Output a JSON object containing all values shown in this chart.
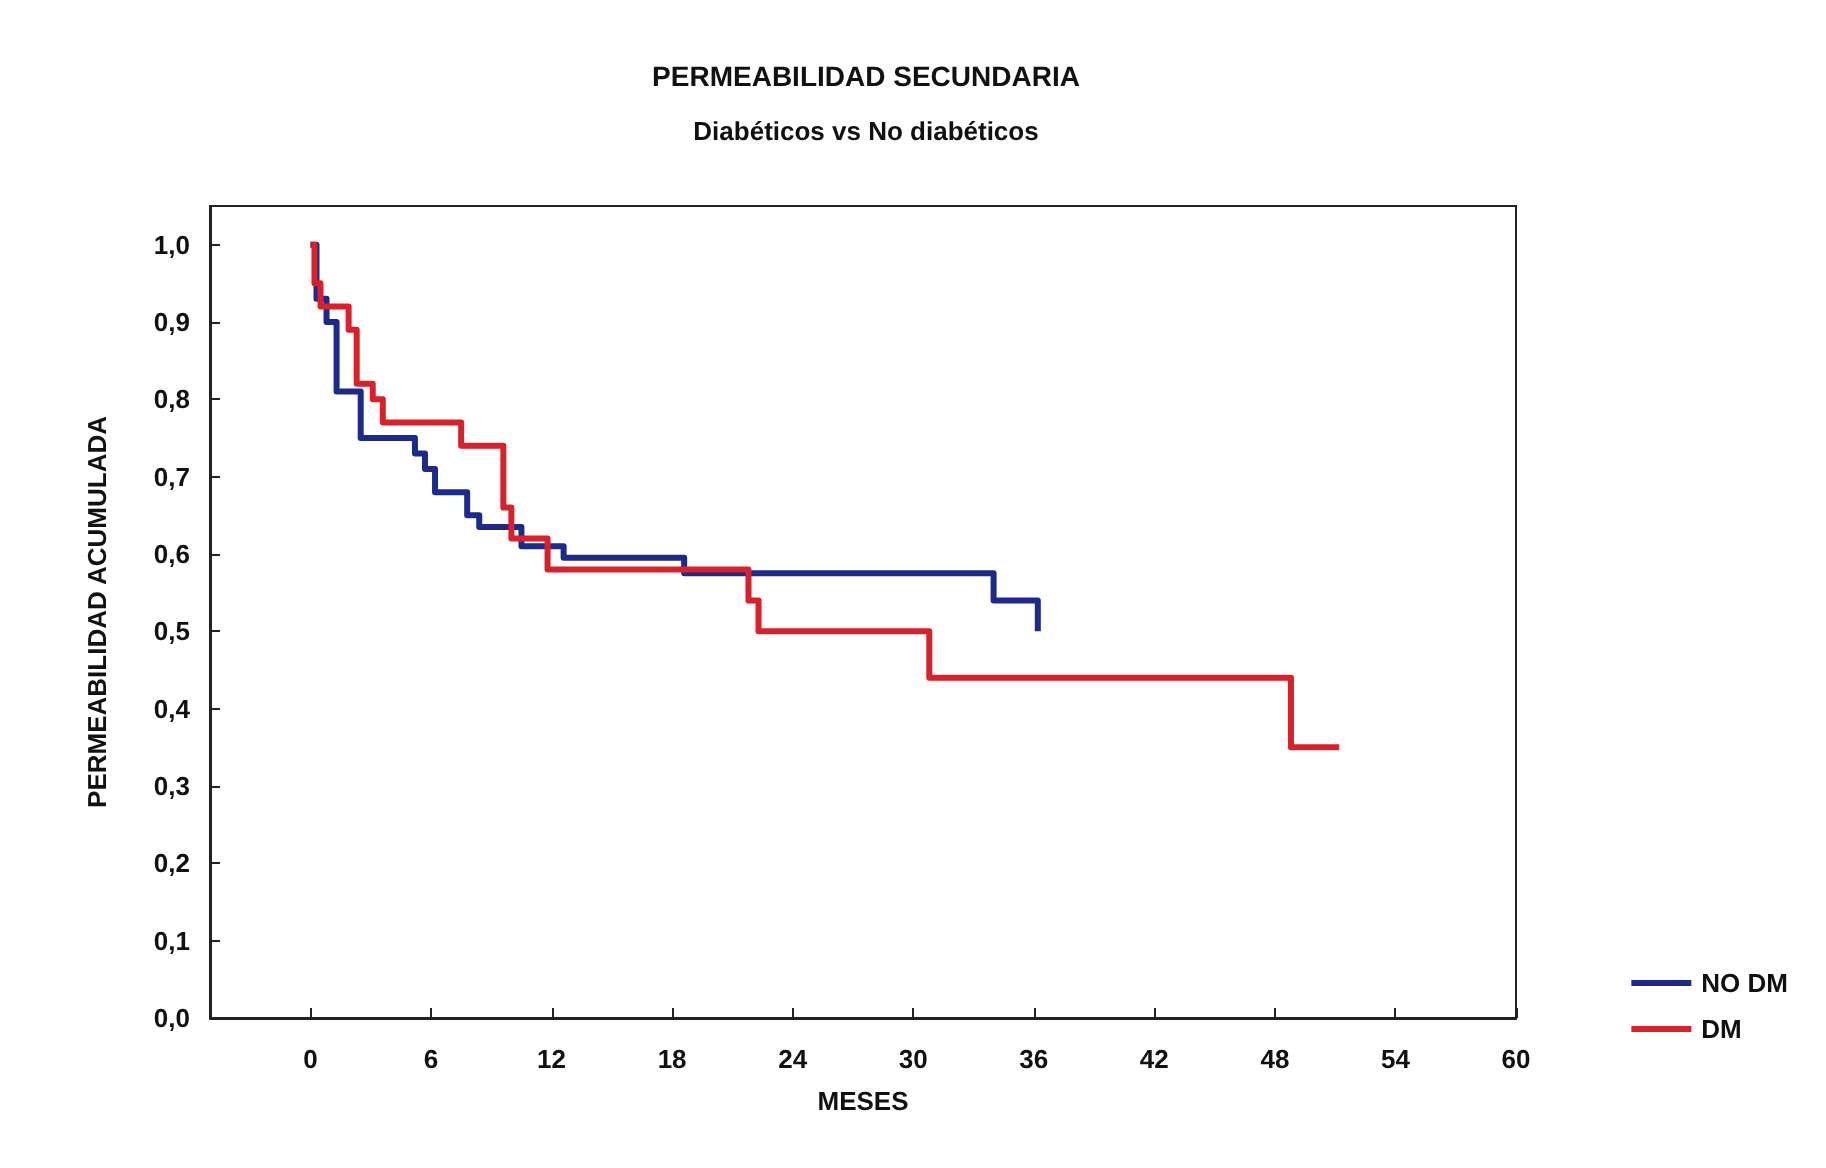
{
  "chart_data": {
    "type": "step",
    "title": "PERMEABILIDAD SECUNDARIA",
    "subtitle": "Diabéticos vs No diabéticos",
    "xlabel": "MESES",
    "ylabel": "PERMEABILIDAD ACUMULADA",
    "xlim": [
      -5,
      60
    ],
    "xticks": [
      0,
      6,
      12,
      18,
      24,
      30,
      36,
      42,
      48,
      54,
      60
    ],
    "ylim": [
      0,
      1.05
    ],
    "yticks": [
      {
        "value": 0,
        "label": "0,0"
      },
      {
        "value": 0.1,
        "label": "0,1"
      },
      {
        "value": 0.2,
        "label": "0,2"
      },
      {
        "value": 0.3,
        "label": "0,3"
      },
      {
        "value": 0.4,
        "label": "0,4"
      },
      {
        "value": 0.5,
        "label": "0,5"
      },
      {
        "value": 0.6,
        "label": "0,6"
      },
      {
        "value": 0.7,
        "label": "0,7"
      },
      {
        "value": 0.8,
        "label": "0,8"
      },
      {
        "value": 0.9,
        "label": "0,9"
      },
      {
        "value": 1.0,
        "label": "1,0"
      }
    ],
    "grid": false,
    "legend": "bottom right",
    "marker": "none",
    "line_style": "solid",
    "series": [
      {
        "name": "NO DM",
        "color": "#1c2a8c",
        "x": [
          0,
          0.3,
          0.8,
          1.3,
          2.5,
          5.2,
          5.7,
          6.2,
          7.8,
          8.4,
          10.5,
          12.6,
          18.6,
          34,
          36.2
        ],
        "values": [
          1.0,
          0.93,
          0.9,
          0.81,
          0.75,
          0.73,
          0.71,
          0.68,
          0.65,
          0.635,
          0.61,
          0.595,
          0.575,
          0.54,
          0.5
        ]
      },
      {
        "name": "DM",
        "color": "#d8212a",
        "x": [
          0,
          0.2,
          0.5,
          1.9,
          2.3,
          3.1,
          3.6,
          7.5,
          9.6,
          10,
          11.8,
          21.8,
          22.3,
          30.8,
          48.8,
          51.2
        ],
        "values": [
          1.0,
          0.95,
          0.92,
          0.89,
          0.82,
          0.8,
          0.77,
          0.74,
          0.66,
          0.62,
          0.58,
          0.54,
          0.5,
          0.44,
          0.35,
          0.35
        ]
      }
    ]
  }
}
